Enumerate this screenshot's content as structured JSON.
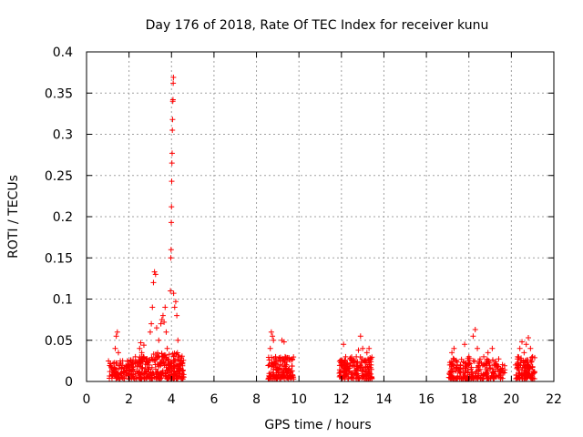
{
  "chart_data": {
    "type": "scatter",
    "title": "Day 176 of 2018, Rate Of TEC Index for receiver kunu",
    "xlabel": "GPS time / hours",
    "ylabel": "ROTI / TECUs",
    "xlim": [
      0,
      22
    ],
    "ylim": [
      0,
      0.4
    ],
    "xticks": [
      0,
      2,
      4,
      6,
      8,
      10,
      12,
      14,
      16,
      18,
      20,
      22
    ],
    "yticks": [
      0,
      0.05,
      0.1,
      0.15,
      0.2,
      0.25,
      0.3,
      0.35,
      0.4
    ],
    "xtick_labels": [
      "0",
      "2",
      "4",
      "6",
      "8",
      "10",
      "12",
      "14",
      "16",
      "18",
      "20",
      "22"
    ],
    "ytick_labels": [
      "0",
      "0.05",
      "0.1",
      "0.15",
      "0.2",
      "0.25",
      "0.3",
      "0.35",
      "0.4"
    ],
    "grid": true,
    "marker": "+",
    "color": "#ff0000",
    "series": [
      {
        "name": "ROTI",
        "points": [
          [
            1.1,
            0.012
          ],
          [
            1.15,
            0.018
          ],
          [
            1.2,
            0.008
          ],
          [
            1.25,
            0.022
          ],
          [
            1.3,
            0.014
          ],
          [
            1.35,
            0.04
          ],
          [
            1.4,
            0.055
          ],
          [
            1.45,
            0.06
          ],
          [
            1.5,
            0.035
          ],
          [
            1.55,
            0.02
          ],
          [
            1.6,
            0.01
          ],
          [
            1.65,
            0.015
          ],
          [
            1.7,
            0.025
          ],
          [
            1.75,
            0.012
          ],
          [
            1.85,
            0.008
          ],
          [
            2.0,
            0.01
          ],
          [
            2.1,
            0.02
          ],
          [
            2.2,
            0.015
          ],
          [
            2.3,
            0.03
          ],
          [
            2.4,
            0.018
          ],
          [
            2.5,
            0.04
          ],
          [
            2.55,
            0.047
          ],
          [
            2.6,
            0.035
          ],
          [
            2.7,
            0.044
          ],
          [
            2.8,
            0.025
          ],
          [
            2.9,
            0.015
          ],
          [
            2.95,
            0.02
          ],
          [
            3.0,
            0.06
          ],
          [
            3.05,
            0.07
          ],
          [
            3.1,
            0.09
          ],
          [
            3.15,
            0.12
          ],
          [
            3.2,
            0.133
          ],
          [
            3.25,
            0.13
          ],
          [
            3.3,
            0.065
          ],
          [
            3.35,
            0.03
          ],
          [
            3.4,
            0.05
          ],
          [
            3.5,
            0.07
          ],
          [
            3.55,
            0.075
          ],
          [
            3.6,
            0.08
          ],
          [
            3.65,
            0.072
          ],
          [
            3.7,
            0.09
          ],
          [
            3.75,
            0.06
          ],
          [
            3.8,
            0.04
          ],
          [
            3.9,
            0.02
          ],
          [
            3.95,
            0.11
          ],
          [
            3.97,
            0.15
          ],
          [
            3.98,
            0.16
          ],
          [
            3.99,
            0.193
          ],
          [
            4.0,
            0.212
          ],
          [
            4.01,
            0.243
          ],
          [
            4.02,
            0.265
          ],
          [
            4.03,
            0.277
          ],
          [
            4.04,
            0.305
          ],
          [
            4.05,
            0.318
          ],
          [
            4.06,
            0.34
          ],
          [
            4.07,
            0.342
          ],
          [
            4.08,
            0.362
          ],
          [
            4.09,
            0.369
          ],
          [
            4.1,
            0.107
          ],
          [
            4.15,
            0.09
          ],
          [
            4.2,
            0.097
          ],
          [
            4.25,
            0.08
          ],
          [
            4.3,
            0.05
          ],
          [
            4.35,
            0.03
          ],
          [
            4.4,
            0.02
          ],
          [
            4.45,
            0.015
          ],
          [
            4.5,
            0.01
          ],
          [
            8.6,
            0.02
          ],
          [
            8.65,
            0.04
          ],
          [
            8.7,
            0.06
          ],
          [
            8.75,
            0.055
          ],
          [
            8.8,
            0.05
          ],
          [
            8.9,
            0.03
          ],
          [
            9.0,
            0.02
          ],
          [
            9.1,
            0.015
          ],
          [
            9.2,
            0.05
          ],
          [
            9.3,
            0.048
          ],
          [
            9.35,
            0.03
          ],
          [
            9.4,
            0.02
          ],
          [
            9.5,
            0.012
          ],
          [
            9.6,
            0.01
          ],
          [
            9.7,
            0.008
          ],
          [
            11.9,
            0.01
          ],
          [
            12.0,
            0.02
          ],
          [
            12.1,
            0.045
          ],
          [
            12.2,
            0.03
          ],
          [
            12.3,
            0.015
          ],
          [
            12.5,
            0.025
          ],
          [
            12.6,
            0.02
          ],
          [
            12.7,
            0.03
          ],
          [
            12.8,
            0.038
          ],
          [
            12.9,
            0.055
          ],
          [
            13.0,
            0.04
          ],
          [
            13.1,
            0.025
          ],
          [
            13.2,
            0.035
          ],
          [
            13.3,
            0.04
          ],
          [
            13.4,
            0.02
          ],
          [
            17.1,
            0.02
          ],
          [
            17.2,
            0.035
          ],
          [
            17.3,
            0.04
          ],
          [
            17.4,
            0.025
          ],
          [
            17.6,
            0.02
          ],
          [
            17.8,
            0.045
          ],
          [
            18.0,
            0.03
          ],
          [
            18.2,
            0.055
          ],
          [
            18.3,
            0.063
          ],
          [
            18.4,
            0.04
          ],
          [
            18.5,
            0.025
          ],
          [
            18.7,
            0.03
          ],
          [
            18.9,
            0.035
          ],
          [
            19.1,
            0.04
          ],
          [
            19.3,
            0.02
          ],
          [
            19.5,
            0.015
          ],
          [
            19.6,
            0.01
          ],
          [
            20.2,
            0.02
          ],
          [
            20.3,
            0.03
          ],
          [
            20.4,
            0.04
          ],
          [
            20.5,
            0.048
          ],
          [
            20.6,
            0.035
          ],
          [
            20.7,
            0.045
          ],
          [
            20.8,
            0.053
          ],
          [
            20.9,
            0.04
          ],
          [
            21.0,
            0.03
          ]
        ]
      }
    ],
    "clusters": [
      {
        "x_range": [
          1.0,
          1.9
        ],
        "y_min": 0.003,
        "y_max": 0.025,
        "count": 70
      },
      {
        "x_range": [
          1.9,
          3.0
        ],
        "y_min": 0.003,
        "y_max": 0.03,
        "count": 120
      },
      {
        "x_range": [
          3.0,
          4.6
        ],
        "y_min": 0.003,
        "y_max": 0.035,
        "count": 200
      },
      {
        "x_range": [
          8.55,
          9.75
        ],
        "y_min": 0.003,
        "y_max": 0.03,
        "count": 140
      },
      {
        "x_range": [
          11.9,
          13.45
        ],
        "y_min": 0.003,
        "y_max": 0.03,
        "count": 180
      },
      {
        "x_range": [
          17.05,
          19.7
        ],
        "y_min": 0.003,
        "y_max": 0.028,
        "count": 230
      },
      {
        "x_range": [
          20.15,
          21.1
        ],
        "y_min": 0.003,
        "y_max": 0.03,
        "count": 110
      }
    ]
  }
}
